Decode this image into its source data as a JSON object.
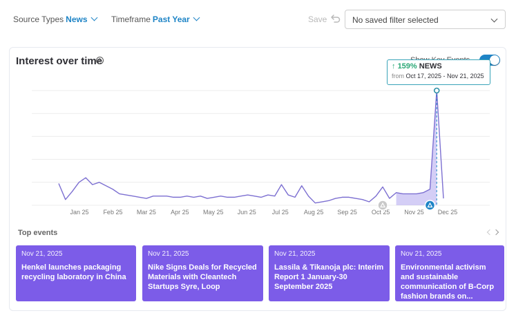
{
  "filters": {
    "source_types": {
      "label": "Source Types",
      "value": "News"
    },
    "timeframe": {
      "label": "Timeframe",
      "value": "Past Year"
    }
  },
  "save_label": "Save",
  "saved_filter": {
    "value": "No saved filter selected"
  },
  "card": {
    "title": "Interest over time",
    "key_events_label": "Show Key Events",
    "key_events_on": true
  },
  "tooltip": {
    "percent": "159%",
    "source": "NEWS",
    "from_label": "from",
    "range": "Oct 17, 2025 - Nov 21, 2025"
  },
  "chart_data": {
    "type": "line",
    "x_ticks": [
      "Jan 25",
      "Feb 25",
      "Mar 25",
      "Apr 25",
      "May 25",
      "Jun 25",
      "Jul 25",
      "Aug 25",
      "Sep 25",
      "Oct 25",
      "Nov 25",
      "Dec 25"
    ],
    "values": [
      19,
      5,
      12,
      20,
      24,
      18,
      20,
      17,
      14,
      10,
      9,
      8,
      7,
      6,
      8,
      8,
      8,
      7,
      7,
      8,
      7,
      8,
      6,
      7,
      8,
      7,
      7,
      8,
      9,
      8,
      7,
      9,
      8,
      18,
      9,
      7,
      17,
      8,
      2,
      3,
      4,
      6,
      7,
      7,
      6,
      5,
      3,
      8,
      16,
      6,
      11,
      10,
      10,
      10,
      11,
      14,
      100,
      6
    ],
    "highlight": {
      "start_index": 50,
      "end_index": 56
    },
    "key_event_markers": [
      {
        "index": 48,
        "active": false
      },
      {
        "index": 55,
        "active": true
      }
    ],
    "ylim": [
      0,
      100
    ],
    "grid": true,
    "colors": {
      "line": "#7c6fd1",
      "highlight_fill": "#b8aef0",
      "marker": "#1e84c6",
      "grid": "#ececec"
    }
  },
  "top_events": {
    "title": "Top events",
    "items": [
      {
        "date": "Nov 21, 2025",
        "headline": "Henkel launches packaging recycling laboratory in China"
      },
      {
        "date": "Nov 21, 2025",
        "headline": "Nike Signs Deals for Recycled Materials with Cleantech Startups Syre, Loop"
      },
      {
        "date": "Nov 21, 2025",
        "headline": "Lassila & Tikanoja plc: Interim Report 1 January-30 September 2025"
      },
      {
        "date": "Nov 21, 2025",
        "headline": "Environmental activism and sustainable communication of B-Corp fashion brands on..."
      }
    ]
  }
}
